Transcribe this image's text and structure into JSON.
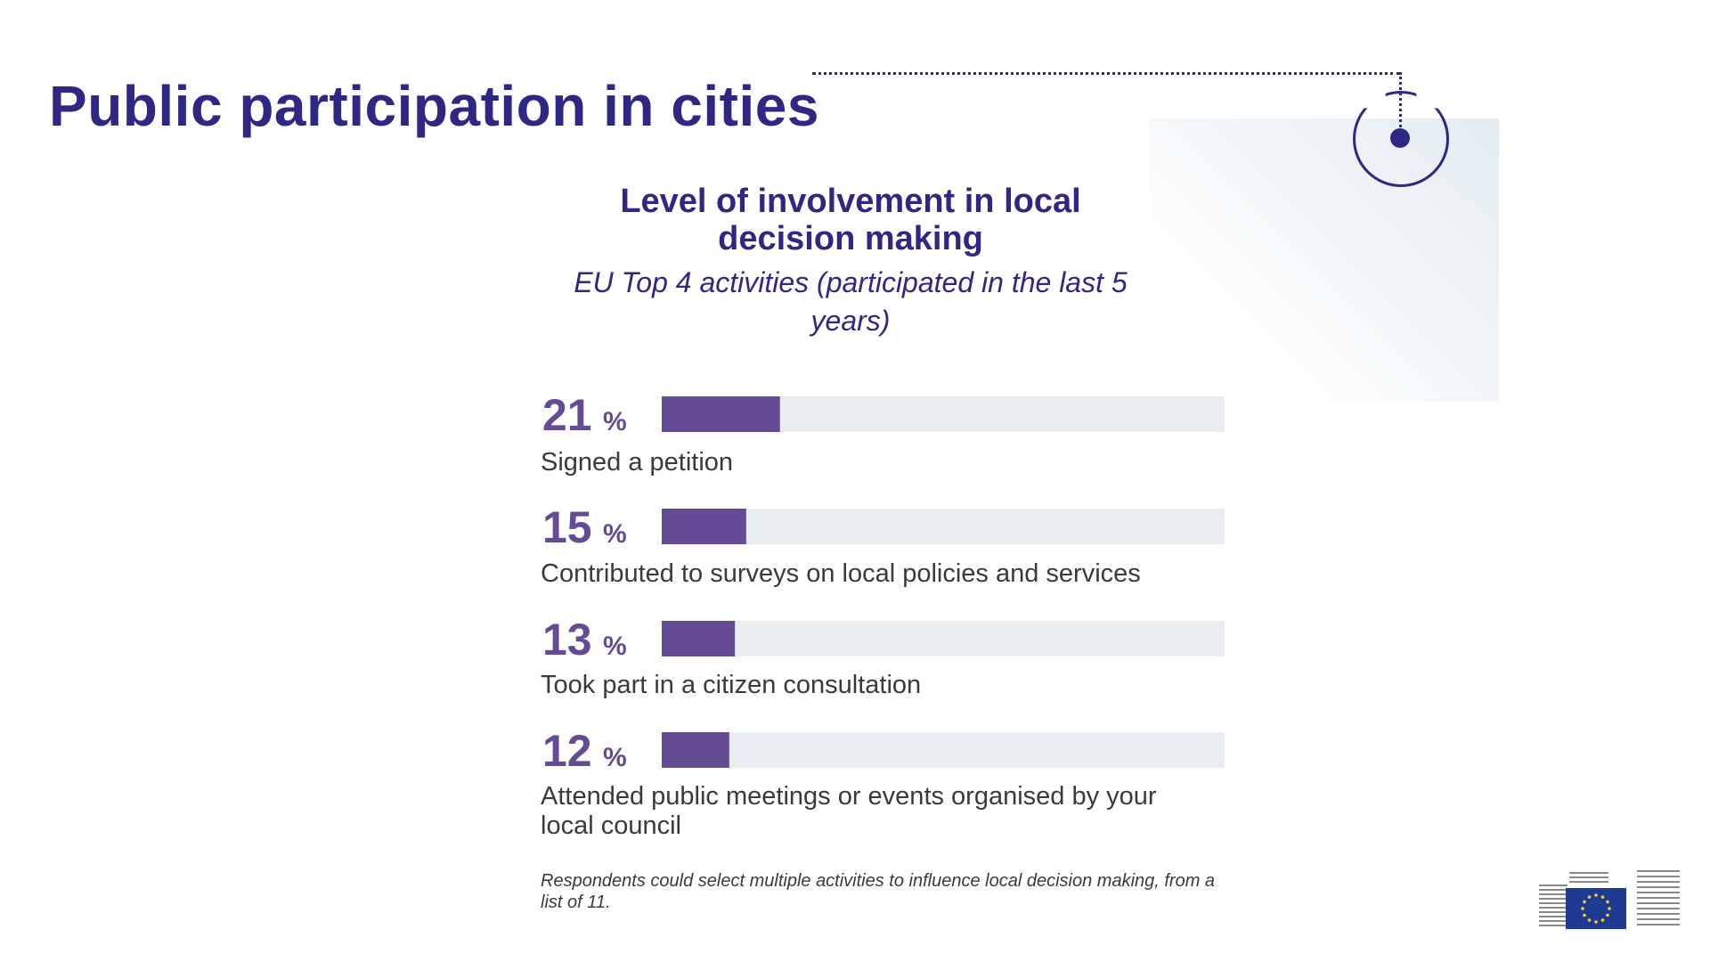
{
  "page": {
    "title": "Public participation in cities"
  },
  "chart_data": {
    "type": "bar",
    "orientation": "horizontal",
    "title": "Level of involvement in local decision making",
    "subtitle": "EU Top 4 activities (participated in the last 5 years)",
    "categories": [
      "Signed a petition",
      "Contributed to surveys on local policies and services",
      "Took part in a citizen consultation",
      "Attended public meetings or events organised by your local council"
    ],
    "values": [
      21,
      15,
      13,
      12
    ],
    "value_labels": [
      "21",
      "15",
      "13",
      "12"
    ],
    "unit": "%",
    "xlim": [
      0,
      100
    ],
    "grid": false,
    "note": "Respondents could select multiple activities to influence local decision making, from a list of 11."
  },
  "colors": {
    "title": "#2e2783",
    "bar_fill": "#644b93",
    "bar_track": "#e7edf1",
    "label_text": "#3a3a3a"
  },
  "icons": {
    "target": "target-icon",
    "logo": "european-commission-logo"
  }
}
